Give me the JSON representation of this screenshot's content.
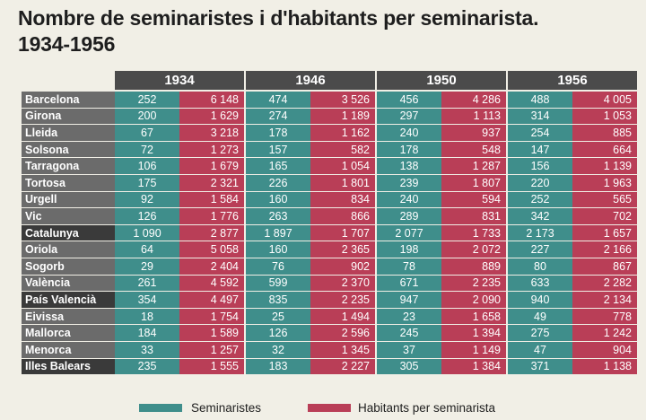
{
  "title_lines": [
    "Nombre de seminaristes i d'habitants per seminarista.",
    "1934-1956"
  ],
  "chart_data": {
    "type": "table",
    "years": [
      "1934",
      "1946",
      "1950",
      "1956"
    ],
    "legend": {
      "seminaristes": {
        "label": "Seminaristes",
        "color": "#3f8e8b"
      },
      "habitants": {
        "label": "Habitants per seminarista",
        "color": "#b93e57"
      }
    },
    "rows": [
      {
        "name": "Barcelona",
        "values": [
          [
            "252",
            "6 148"
          ],
          [
            "474",
            "3 526"
          ],
          [
            "456",
            "4 286"
          ],
          [
            "488",
            "4 005"
          ]
        ]
      },
      {
        "name": "Girona",
        "values": [
          [
            "200",
            "1 629"
          ],
          [
            "274",
            "1 189"
          ],
          [
            "297",
            "1 113"
          ],
          [
            "314",
            "1 053"
          ]
        ]
      },
      {
        "name": "Lleida",
        "values": [
          [
            "67",
            "3 218"
          ],
          [
            "178",
            "1 162"
          ],
          [
            "240",
            "937"
          ],
          [
            "254",
            "885"
          ]
        ]
      },
      {
        "name": "Solsona",
        "values": [
          [
            "72",
            "1 273"
          ],
          [
            "157",
            "582"
          ],
          [
            "178",
            "548"
          ],
          [
            "147",
            "664"
          ]
        ]
      },
      {
        "name": "Tarragona",
        "values": [
          [
            "106",
            "1 679"
          ],
          [
            "165",
            "1 054"
          ],
          [
            "138",
            "1 287"
          ],
          [
            "156",
            "1 139"
          ]
        ]
      },
      {
        "name": "Tortosa",
        "values": [
          [
            "175",
            "2 321"
          ],
          [
            "226",
            "1 801"
          ],
          [
            "239",
            "1 807"
          ],
          [
            "220",
            "1 963"
          ]
        ]
      },
      {
        "name": "Urgell",
        "values": [
          [
            "92",
            "1 584"
          ],
          [
            "160",
            "834"
          ],
          [
            "240",
            "594"
          ],
          [
            "252",
            "565"
          ]
        ]
      },
      {
        "name": "Vic",
        "values": [
          [
            "126",
            "1 776"
          ],
          [
            "263",
            "866"
          ],
          [
            "289",
            "831"
          ],
          [
            "342",
            "702"
          ]
        ]
      },
      {
        "name": "Catalunya",
        "dark": true,
        "values": [
          [
            "1 090",
            "2 877"
          ],
          [
            "1 897",
            "1 707"
          ],
          [
            "2 077",
            "1 733"
          ],
          [
            "2 173",
            "1 657"
          ]
        ]
      },
      {
        "name": "Oriola",
        "values": [
          [
            "64",
            "5 058"
          ],
          [
            "160",
            "2 365"
          ],
          [
            "198",
            "2 072"
          ],
          [
            "227",
            "2 166"
          ]
        ]
      },
      {
        "name": "Sogorb",
        "values": [
          [
            "29",
            "2 404"
          ],
          [
            "76",
            "902"
          ],
          [
            "78",
            "889"
          ],
          [
            "80",
            "867"
          ]
        ]
      },
      {
        "name": "València",
        "values": [
          [
            "261",
            "4 592"
          ],
          [
            "599",
            "2 370"
          ],
          [
            "671",
            "2 235"
          ],
          [
            "633",
            "2 282"
          ]
        ]
      },
      {
        "name": "País Valencià",
        "dark": true,
        "values": [
          [
            "354",
            "4 497"
          ],
          [
            "835",
            "2 235"
          ],
          [
            "947",
            "2 090"
          ],
          [
            "940",
            "2 134"
          ]
        ]
      },
      {
        "name": "Eivissa",
        "values": [
          [
            "18",
            "1 754"
          ],
          [
            "25",
            "1 494"
          ],
          [
            "23",
            "1 658"
          ],
          [
            "49",
            "778"
          ]
        ]
      },
      {
        "name": "Mallorca",
        "values": [
          [
            "184",
            "1 589"
          ],
          [
            "126",
            "2 596"
          ],
          [
            "245",
            "1 394"
          ],
          [
            "275",
            "1 242"
          ]
        ]
      },
      {
        "name": "Menorca",
        "values": [
          [
            "33",
            "1 257"
          ],
          [
            "32",
            "1 345"
          ],
          [
            "37",
            "1 149"
          ],
          [
            "47",
            "904"
          ]
        ]
      },
      {
        "name": "Illes Balears",
        "dark": true,
        "values": [
          [
            "235",
            "1 555"
          ],
          [
            "183",
            "2 227"
          ],
          [
            "305",
            "1 384"
          ],
          [
            "371",
            "1 138"
          ]
        ]
      }
    ]
  }
}
